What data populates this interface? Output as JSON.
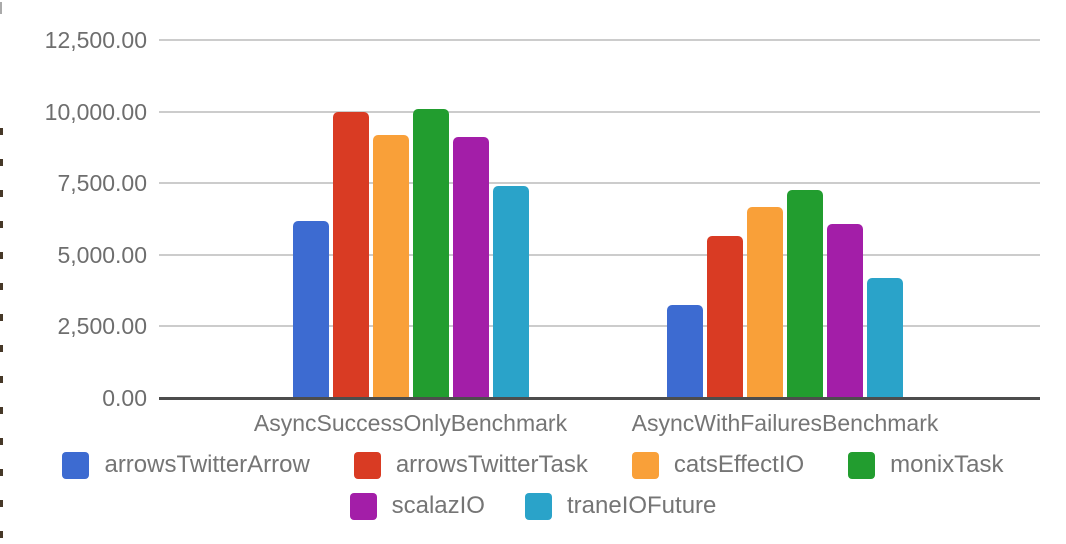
{
  "chart_data": {
    "type": "bar",
    "title": "",
    "xlabel": "",
    "ylabel": "",
    "categories": [
      "AsyncSuccessOnlyBenchmark",
      "AsyncWithFailuresBenchmark"
    ],
    "series": [
      {
        "name": "arrowsTwitterArrow",
        "color": "#3D6BD1",
        "values": [
          6170,
          3250
        ]
      },
      {
        "name": "arrowsTwitterTask",
        "color": "#D93B23",
        "values": [
          10000,
          5650
        ]
      },
      {
        "name": "catsEffectIO",
        "color": "#F9A039",
        "values": [
          9200,
          6670
        ]
      },
      {
        "name": "monixTask",
        "color": "#229D2F",
        "values": [
          10080,
          7260
        ]
      },
      {
        "name": "scalazIO",
        "color": "#A31EA8",
        "values": [
          9100,
          6090
        ]
      },
      {
        "name": "traneIOFuture",
        "color": "#2AA3C9",
        "values": [
          7400,
          4200
        ]
      }
    ],
    "ylim": [
      0,
      12500
    ],
    "y_ticks": [
      {
        "value": 0,
        "label": "0.00"
      },
      {
        "value": 2500,
        "label": "2,500.00"
      },
      {
        "value": 5000,
        "label": "5,000.00"
      },
      {
        "value": 7500,
        "label": "7,500.00"
      },
      {
        "value": 10000,
        "label": "10,000.00"
      },
      {
        "value": 12500,
        "label": "12,500.00"
      }
    ],
    "grid": true,
    "legend_position": "bottom",
    "legend_rows": [
      4,
      2
    ]
  },
  "colors": {
    "background": "#ffffff",
    "gridline": "#cccccc",
    "axis_line": "#4d4d4d",
    "tick_text": "#6e6e6e",
    "category_text": "#757575",
    "legend_text": "#757575"
  }
}
